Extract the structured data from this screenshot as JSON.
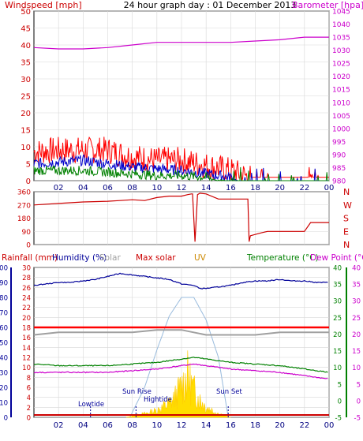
{
  "header": {
    "title": "24 hour graph day : 01 December 2013"
  },
  "chart_data": [
    {
      "id": "wind-baro",
      "type": "line",
      "title": "24 hour graph day : 01 December 2013",
      "left_label": "Windspeed [mph]",
      "right_label": "Barometer [hpa]",
      "ylim_left": [
        0,
        50
      ],
      "left_ticks": [
        0,
        5,
        10,
        15,
        20,
        25,
        30,
        35,
        40,
        45,
        50
      ],
      "ylim_right": [
        980,
        1045
      ],
      "right_ticks": [
        980,
        985,
        990,
        995,
        1000,
        1005,
        1010,
        1015,
        1020,
        1025,
        1030,
        1035,
        1040,
        1045
      ],
      "x_ticks": [
        "02",
        "04",
        "06",
        "08",
        "10",
        "12",
        "14",
        "16",
        "18",
        "20",
        "22",
        "00"
      ],
      "grid": true,
      "colors": {
        "gust": "#ff0000",
        "avg": "#0000cc",
        "low": "#008000",
        "barometer": "#cc00cc"
      },
      "barometer": {
        "x": [
          0,
          2,
          4,
          6,
          8,
          10,
          12,
          14,
          16,
          18,
          20,
          22,
          24
        ],
        "y": [
          1031,
          1030.5,
          1030.5,
          1031,
          1032,
          1033,
          1033,
          1033,
          1033,
          1033.5,
          1034,
          1035,
          1035
        ]
      },
      "gust_profile": {
        "x": [
          0,
          2,
          4,
          6,
          8,
          10,
          12,
          14,
          16,
          17.5,
          18,
          20,
          22,
          24
        ],
        "y": [
          8.5,
          9,
          9,
          9,
          7,
          6,
          6,
          4.5,
          3,
          1,
          1,
          1,
          1,
          1
        ]
      },
      "avg_profile": {
        "x": [
          0,
          2,
          4,
          6,
          8,
          10,
          12,
          14,
          16,
          16.5,
          24
        ],
        "y": [
          5,
          5.5,
          6,
          5,
          4,
          3.5,
          3,
          2,
          1,
          0,
          0
        ]
      },
      "low_profile": {
        "x": [
          0,
          2,
          4,
          6,
          8,
          10,
          12,
          14,
          15,
          24
        ],
        "y": [
          3,
          3,
          3,
          2.5,
          2,
          1.5,
          1.5,
          1,
          0,
          0
        ]
      }
    },
    {
      "id": "wind-dir",
      "type": "line",
      "ylim": [
        0,
        360
      ],
      "left_ticks": [
        0,
        90,
        180,
        270,
        360
      ],
      "right_labels": [
        "N",
        "W",
        "S",
        "E",
        "N"
      ],
      "x_ticks": [
        "02",
        "04",
        "06",
        "08",
        "10",
        "12",
        "14",
        "16",
        "18",
        "20",
        "22",
        "00"
      ],
      "grid": true,
      "color": "#cc0000",
      "series": {
        "x": [
          0,
          1,
          2,
          4,
          6,
          7,
          8,
          9,
          10,
          11,
          12,
          12.5,
          12.8,
          12.9,
          13.1,
          13.3,
          13.5,
          14,
          15,
          16,
          17,
          17.4,
          17.5,
          17.6,
          18.5,
          19,
          20,
          22,
          22.5,
          23,
          24
        ],
        "y": [
          270,
          275,
          280,
          290,
          295,
          300,
          305,
          300,
          320,
          330,
          330,
          340,
          345,
          345,
          20,
          340,
          350,
          345,
          310,
          310,
          310,
          310,
          20,
          60,
          80,
          90,
          90,
          90,
          150,
          150,
          150
        ]
      }
    },
    {
      "id": "climate",
      "type": "line",
      "legend": [
        "Rainfall (mm)",
        "Humidity (%)",
        "Solar",
        "Max solar",
        "UV",
        "Temperature (°C)",
        "Dew Point (°C)"
      ],
      "left_ticks_rain": [
        0,
        2,
        4,
        6,
        8,
        10,
        12,
        14,
        16,
        18,
        20,
        22,
        24,
        26,
        28,
        30
      ],
      "left_ticks_humidity": [
        0,
        10,
        20,
        30,
        40,
        50,
        60,
        70,
        80,
        90,
        100
      ],
      "right_ticks_temp": [
        -5,
        0,
        5,
        10,
        15,
        20,
        25,
        30,
        35,
        40
      ],
      "right_ticks_dew": [
        -5,
        0,
        5,
        10,
        15,
        20,
        25,
        30,
        35,
        40
      ],
      "ylim_humidity": [
        0,
        100
      ],
      "ylim_temp": [
        -5,
        40
      ],
      "x_ticks": [
        "02",
        "04",
        "06",
        "08",
        "10",
        "12",
        "14",
        "16",
        "18",
        "20",
        "22",
        "00"
      ],
      "annotations": [
        "Lowtide",
        "Sun Rise",
        "Hightide",
        "Sun Set"
      ],
      "grid": true,
      "colors": {
        "humidity": "#000099",
        "temperature": "#008000",
        "dewpoint": "#cc00cc",
        "rain": "#ff0000",
        "solar_grey": "#a0a0a0",
        "solar": "#ffdd00",
        "uv": "#cc8800"
      },
      "humidity": {
        "x": [
          0,
          1,
          2,
          3,
          4,
          5,
          6,
          7,
          8,
          9,
          10,
          11,
          12,
          13,
          13.5,
          14,
          15,
          16,
          17,
          18,
          19,
          20,
          21,
          22,
          23,
          24
        ],
        "y": [
          88,
          89,
          90,
          90,
          91,
          92,
          94,
          96,
          95,
          94,
          93,
          92,
          89,
          88,
          86,
          86,
          87,
          88,
          90,
          91,
          91,
          92,
          91,
          91,
          90,
          90
        ]
      },
      "temperature": {
        "x": [
          0,
          2,
          4,
          6,
          8,
          10,
          12,
          13,
          14,
          16,
          18,
          20,
          22,
          24
        ],
        "y": [
          11,
          10.5,
          10.5,
          10.5,
          11,
          11.5,
          12.5,
          13,
          12.5,
          11.5,
          11,
          10.5,
          9.5,
          8.5
        ]
      },
      "dewpoint": {
        "x": [
          0,
          2,
          4,
          6,
          8,
          10,
          12,
          13,
          14,
          16,
          18,
          20,
          22,
          24
        ],
        "y": [
          8.5,
          8.5,
          8.5,
          8.5,
          9,
          9.5,
          10.5,
          11,
          10.5,
          9.5,
          9,
          8.5,
          7.5,
          6.5
        ]
      },
      "rain_total": {
        "x": [
          0,
          24
        ],
        "y": [
          18,
          18
        ]
      },
      "grey_line": {
        "x": [
          0,
          2,
          4,
          6,
          8,
          10,
          12,
          14,
          16,
          18,
          20,
          22,
          24
        ],
        "y": [
          16.5,
          17,
          17,
          17,
          17,
          17.5,
          17.5,
          16.5,
          16.5,
          16.5,
          17,
          17,
          17
        ]
      },
      "max_solar": {
        "x": [
          7.8,
          9,
          10,
          11,
          12,
          13,
          14,
          15,
          15.8
        ],
        "y": [
          0,
          80,
          180,
          270,
          320,
          320,
          260,
          160,
          0
        ]
      },
      "solar": {
        "x": [
          7.5,
          9,
          10,
          11,
          11.5,
          12,
          12.5,
          13,
          13.5,
          14,
          15,
          16
        ],
        "y": [
          0,
          10,
          20,
          40,
          60,
          90,
          120,
          80,
          50,
          30,
          10,
          0
        ]
      }
    }
  ]
}
